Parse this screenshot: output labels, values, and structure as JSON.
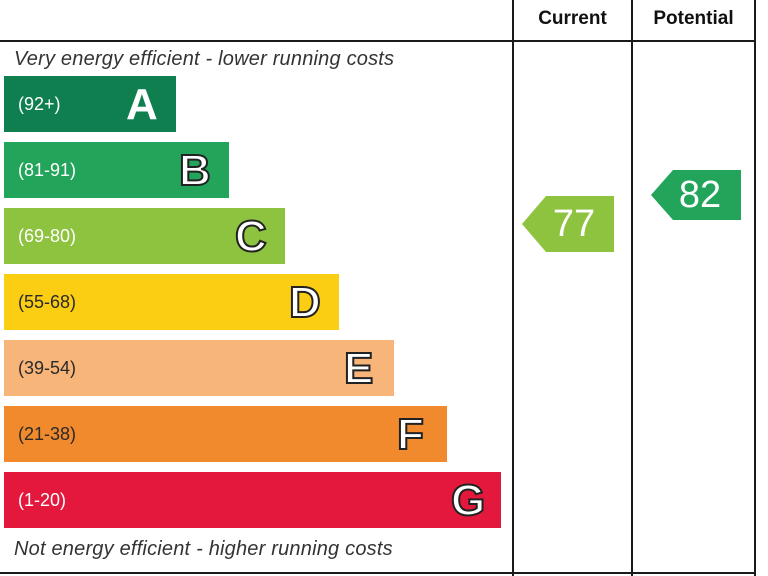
{
  "header": {
    "current_label": "Current",
    "potential_label": "Potential"
  },
  "captions": {
    "top": "Very energy efficient - lower running costs",
    "bottom": "Not energy efficient - higher running costs"
  },
  "colors": {
    "A": "#0f7f4f",
    "B": "#22a45a",
    "C": "#8dc33f",
    "D": "#fcce13",
    "E": "#f8b579",
    "F": "#f08a2c",
    "G": "#e3183c"
  },
  "chart_data": {
    "type": "bar",
    "categories": [
      "A",
      "B",
      "C",
      "D",
      "E",
      "F",
      "G"
    ],
    "ranges": [
      "(92+)",
      "(81-91)",
      "(69-80)",
      "(55-68)",
      "(39-54)",
      "(21-38)",
      "(1-20)"
    ],
    "current": {
      "value": 77,
      "band": "C"
    },
    "potential": {
      "value": 82,
      "band": "B"
    }
  }
}
